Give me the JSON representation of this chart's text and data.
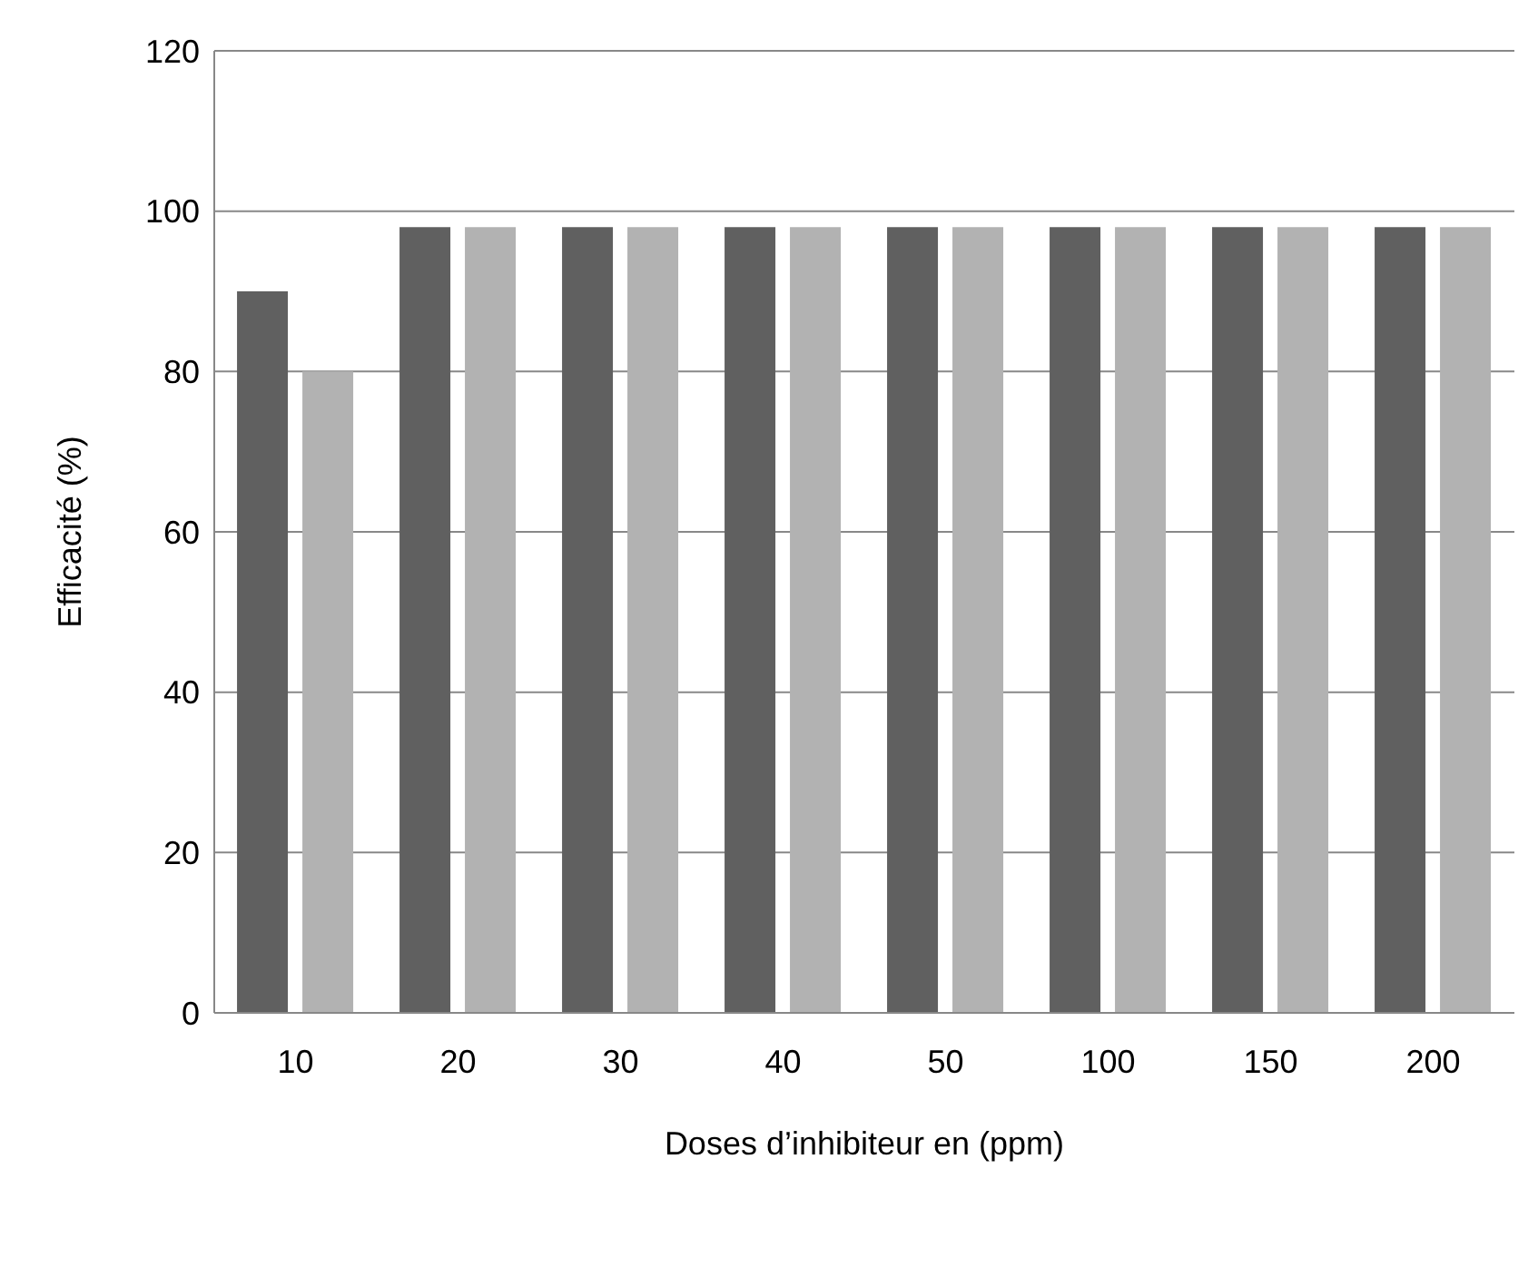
{
  "chart_data": {
    "type": "bar",
    "xlabel": "Doses d’inhibiteur en (ppm)",
    "ylabel": "Efficacité (%)",
    "categories": [
      "10",
      "20",
      "30",
      "40",
      "50",
      "100",
      "150",
      "200"
    ],
    "series": [
      {
        "color": "#606060",
        "values": [
          90,
          98,
          98,
          98,
          98,
          98,
          98,
          98
        ]
      },
      {
        "color": "#b2b2b2",
        "values": [
          80,
          98,
          98,
          98,
          98,
          98,
          98,
          98
        ]
      }
    ],
    "ylim": [
      0,
      120
    ],
    "yticks": [
      0,
      20,
      40,
      60,
      80,
      100,
      120
    ],
    "grid": "y",
    "legend": false
  }
}
